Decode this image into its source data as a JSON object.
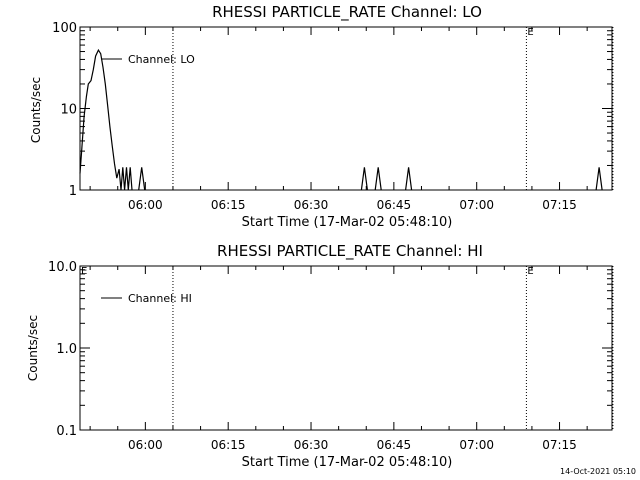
{
  "footer_timestamp": "14-Oct-2021 05:10",
  "chart_data": [
    {
      "type": "line",
      "title": "RHESSI PARTICLE_RATE Channel: LO",
      "xlabel": "Start Time (17-Mar-02 05:48:10)",
      "ylabel": "Counts/sec",
      "yscale": "log",
      "ylim": [
        1,
        100
      ],
      "xlim": [
        "05:48:10",
        "07:24:30"
      ],
      "x_ticks": [
        "06:00",
        "06:15",
        "06:30",
        "06:45",
        "07:00",
        "07:15"
      ],
      "y_ticks": [
        "1",
        "10",
        "100"
      ],
      "grid": false,
      "legend": {
        "position": "top-left",
        "label": "Channel: LO"
      },
      "vertical_markers": [
        {
          "time": "06:05:00",
          "label": ""
        },
        {
          "time": "07:09:00",
          "label": "E"
        },
        {
          "time": "07:24:40",
          "label": ""
        }
      ],
      "series": [
        {
          "name": "Channel: LO",
          "points": [
            [
              "05:48:10",
              1.6
            ],
            [
              "05:48:30",
              3.2
            ],
            [
              "05:48:55",
              8.0
            ],
            [
              "05:49:20",
              14
            ],
            [
              "05:49:40",
              20
            ],
            [
              "05:50:10",
              22
            ],
            [
              "05:50:35",
              30
            ],
            [
              "05:51:00",
              44
            ],
            [
              "05:51:30",
              52
            ],
            [
              "05:51:55",
              47
            ],
            [
              "05:52:20",
              32
            ],
            [
              "05:52:45",
              20
            ],
            [
              "05:53:10",
              11
            ],
            [
              "05:53:35",
              6
            ],
            [
              "05:54:00",
              3.5
            ],
            [
              "05:54:25",
              2.1
            ],
            [
              "05:54:50",
              1.4
            ],
            [
              "05:55:15",
              1.8
            ],
            [
              "05:55:35",
              1.0
            ],
            [
              "05:55:55",
              1.9
            ],
            [
              "05:56:15",
              1.0
            ],
            [
              "05:56:35",
              1.9
            ],
            [
              "05:56:55",
              1.0
            ],
            [
              "05:57:15",
              1.9
            ],
            [
              "05:57:35",
              1.0
            ]
          ],
          "bursts": [
            [
              "05:59:20",
              1.9
            ],
            [
              "06:39:40",
              1.9
            ],
            [
              "06:42:10",
              1.9
            ],
            [
              "06:47:40",
              1.9
            ],
            [
              "07:22:10",
              1.9
            ]
          ]
        }
      ]
    },
    {
      "type": "line",
      "title": "RHESSI PARTICLE_RATE Channel: HI",
      "xlabel": "Start Time (17-Mar-02 05:48:10)",
      "ylabel": "Counts/sec",
      "yscale": "log",
      "ylim": [
        0.1,
        10.0
      ],
      "xlim": [
        "05:48:10",
        "07:24:30"
      ],
      "x_ticks": [
        "06:00",
        "06:15",
        "06:30",
        "06:45",
        "07:00",
        "07:15"
      ],
      "y_ticks": [
        "0.1",
        "1.0",
        "10.0"
      ],
      "grid": false,
      "legend": {
        "position": "top-left",
        "label": "Channel: HI"
      },
      "vertical_markers": [
        {
          "time": "05:48:10",
          "label": "E"
        },
        {
          "time": "06:05:00",
          "label": ""
        },
        {
          "time": "07:09:00",
          "label": "E"
        },
        {
          "time": "07:24:40",
          "label": ""
        }
      ],
      "series": [
        {
          "name": "Channel: HI",
          "points": []
        }
      ]
    }
  ]
}
